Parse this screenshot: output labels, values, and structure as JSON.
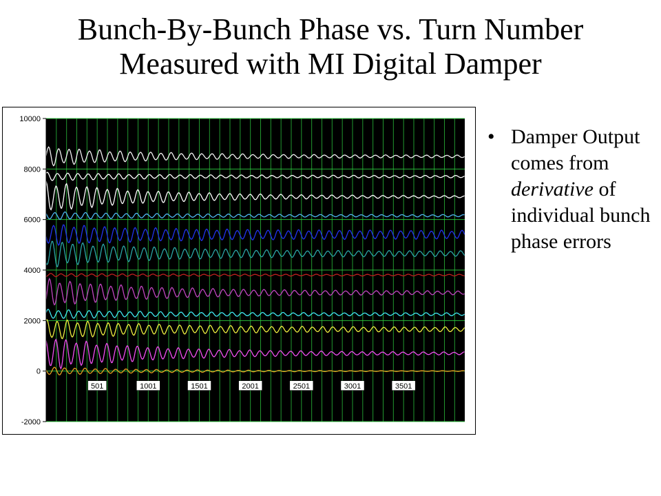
{
  "title": {
    "line1": "Bunch-By-Bunch Phase vs. Turn Number",
    "line2": "Measured with MI Digital Damper"
  },
  "bullet": {
    "marker": "•",
    "text_before": "Damper Output comes from ",
    "emphasis": "derivative",
    "text_after": " of individual bunch phase errors"
  },
  "chart_data": {
    "type": "line",
    "title": "",
    "xlabel": "",
    "ylabel": "",
    "xlim": [
      1,
      4100
    ],
    "ylim": [
      -2000,
      10000
    ],
    "yticks": [
      -2000,
      0,
      2000,
      4000,
      6000,
      8000,
      10000
    ],
    "y_tick_labels": [
      "-2000",
      "0",
      "2000",
      "4000",
      "6000",
      "8000",
      "10000"
    ],
    "x_tick_labels": [
      {
        "x": 501,
        "label": "501"
      },
      {
        "x": 1001,
        "label": "1001"
      },
      {
        "x": 1501,
        "label": "1501"
      },
      {
        "x": 2001,
        "label": "2001"
      },
      {
        "x": 2501,
        "label": "2501"
      },
      {
        "x": 3001,
        "label": "3001"
      },
      {
        "x": 3501,
        "label": "3501"
      }
    ],
    "x_label_y": -600,
    "background": "#000000",
    "grid": true,
    "grid_color": "#2ecc40",
    "vertical_grid_step": 100,
    "horizontal_grid_step": 2000,
    "oscillation_period": 100,
    "series": [
      {
        "offset": 8500,
        "initial_amplitude": 350,
        "final_amplitude": 40,
        "color": "#f3f3f3"
      },
      {
        "offset": 7700,
        "initial_amplitude": 150,
        "final_amplitude": 40,
        "color": "#ffffff"
      },
      {
        "offset": 6900,
        "initial_amplitude": 550,
        "final_amplitude": 30,
        "color": "#ffffff"
      },
      {
        "offset": 6150,
        "initial_amplitude": 150,
        "final_amplitude": 40,
        "color": "#4fb6f0"
      },
      {
        "offset": 5400,
        "initial_amplitude": 400,
        "final_amplitude": 150,
        "color": "#2233ee"
      },
      {
        "offset": 4650,
        "initial_amplitude": 500,
        "final_amplitude": 90,
        "color": "#2ba6a6"
      },
      {
        "offset": 3800,
        "initial_amplitude": 60,
        "final_amplitude": 30,
        "color": "#c0201e"
      },
      {
        "offset": 3100,
        "initial_amplitude": 500,
        "final_amplitude": 60,
        "color": "#c046c0"
      },
      {
        "offset": 2250,
        "initial_amplitude": 180,
        "final_amplitude": 50,
        "color": "#40e8f0"
      },
      {
        "offset": 1650,
        "initial_amplitude": 380,
        "final_amplitude": 80,
        "color": "#f0f040"
      },
      {
        "offset": 700,
        "initial_amplitude": 600,
        "final_amplitude": 40,
        "color": "#f050f0"
      },
      {
        "offset": 0,
        "initial_amplitude": 150,
        "final_amplitude": 10,
        "color": "#e8a020"
      }
    ]
  }
}
